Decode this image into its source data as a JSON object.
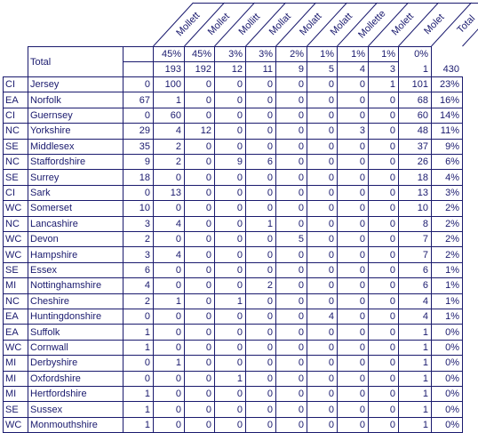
{
  "table": {
    "total_label": "Total",
    "columns": [
      "Mollett",
      "Mollet",
      "Mollitt",
      "Mollat",
      "Molatt",
      "Molatt",
      "Mollette",
      "Molett",
      "Molet",
      "Total"
    ],
    "header_pcts": [
      "45%",
      "45%",
      "3%",
      "3%",
      "2%",
      "1%",
      "1%",
      "1%",
      "0%"
    ],
    "header_counts": [
      "193",
      "192",
      "12",
      "11",
      "9",
      "5",
      "4",
      "3",
      "1",
      "430"
    ],
    "rows": [
      {
        "region": "CI",
        "county": "Jersey",
        "values": [
          "0",
          "100",
          "0",
          "0",
          "0",
          "0",
          "0",
          "0",
          "1",
          "101"
        ],
        "pct": "23%"
      },
      {
        "region": "EA",
        "county": "Norfolk",
        "values": [
          "67",
          "1",
          "0",
          "0",
          "0",
          "0",
          "0",
          "0",
          "0",
          "68"
        ],
        "pct": "16%"
      },
      {
        "region": "CI",
        "county": "Guernsey",
        "values": [
          "0",
          "60",
          "0",
          "0",
          "0",
          "0",
          "0",
          "0",
          "0",
          "60"
        ],
        "pct": "14%"
      },
      {
        "region": "NC",
        "county": "Yorkshire",
        "values": [
          "29",
          "4",
          "12",
          "0",
          "0",
          "0",
          "0",
          "3",
          "0",
          "48"
        ],
        "pct": "11%"
      },
      {
        "region": "SE",
        "county": "Middlesex",
        "values": [
          "35",
          "2",
          "0",
          "0",
          "0",
          "0",
          "0",
          "0",
          "0",
          "37"
        ],
        "pct": "9%"
      },
      {
        "region": "NC",
        "county": "Staffordshire",
        "values": [
          "9",
          "2",
          "0",
          "9",
          "6",
          "0",
          "0",
          "0",
          "0",
          "26"
        ],
        "pct": "6%"
      },
      {
        "region": "SE",
        "county": "Surrey",
        "values": [
          "18",
          "0",
          "0",
          "0",
          "0",
          "0",
          "0",
          "0",
          "0",
          "18"
        ],
        "pct": "4%"
      },
      {
        "region": "CI",
        "county": "Sark",
        "values": [
          "0",
          "13",
          "0",
          "0",
          "0",
          "0",
          "0",
          "0",
          "0",
          "13"
        ],
        "pct": "3%"
      },
      {
        "region": "WC",
        "county": "Somerset",
        "values": [
          "10",
          "0",
          "0",
          "0",
          "0",
          "0",
          "0",
          "0",
          "0",
          "10"
        ],
        "pct": "2%"
      },
      {
        "region": "NC",
        "county": "Lancashire",
        "values": [
          "3",
          "4",
          "0",
          "0",
          "1",
          "0",
          "0",
          "0",
          "0",
          "8"
        ],
        "pct": "2%"
      },
      {
        "region": "WC",
        "county": "Devon",
        "values": [
          "2",
          "0",
          "0",
          "0",
          "0",
          "5",
          "0",
          "0",
          "0",
          "7"
        ],
        "pct": "2%"
      },
      {
        "region": "WC",
        "county": "Hampshire",
        "values": [
          "3",
          "4",
          "0",
          "0",
          "0",
          "0",
          "0",
          "0",
          "0",
          "7"
        ],
        "pct": "2%"
      },
      {
        "region": "SE",
        "county": "Essex",
        "values": [
          "6",
          "0",
          "0",
          "0",
          "0",
          "0",
          "0",
          "0",
          "0",
          "6"
        ],
        "pct": "1%"
      },
      {
        "region": "MI",
        "county": "Nottinghamshire",
        "values": [
          "4",
          "0",
          "0",
          "0",
          "2",
          "0",
          "0",
          "0",
          "0",
          "6"
        ],
        "pct": "1%"
      },
      {
        "region": "NC",
        "county": "Cheshire",
        "values": [
          "2",
          "1",
          "0",
          "1",
          "0",
          "0",
          "0",
          "0",
          "0",
          "4"
        ],
        "pct": "1%"
      },
      {
        "region": "EA",
        "county": "Huntingdonshire",
        "values": [
          "0",
          "0",
          "0",
          "0",
          "0",
          "0",
          "4",
          "0",
          "0",
          "4"
        ],
        "pct": "1%"
      },
      {
        "region": "EA",
        "county": "Suffolk",
        "values": [
          "1",
          "0",
          "0",
          "0",
          "0",
          "0",
          "0",
          "0",
          "0",
          "1"
        ],
        "pct": "0%"
      },
      {
        "region": "WC",
        "county": "Cornwall",
        "values": [
          "1",
          "0",
          "0",
          "0",
          "0",
          "0",
          "0",
          "0",
          "0",
          "1"
        ],
        "pct": "0%"
      },
      {
        "region": "MI",
        "county": "Derbyshire",
        "values": [
          "0",
          "1",
          "0",
          "0",
          "0",
          "0",
          "0",
          "0",
          "0",
          "1"
        ],
        "pct": "0%"
      },
      {
        "region": "MI",
        "county": "Oxfordshire",
        "values": [
          "0",
          "0",
          "0",
          "1",
          "0",
          "0",
          "0",
          "0",
          "0",
          "1"
        ],
        "pct": "0%"
      },
      {
        "region": "MI",
        "county": "Hertfordshire",
        "values": [
          "1",
          "0",
          "0",
          "0",
          "0",
          "0",
          "0",
          "0",
          "0",
          "1"
        ],
        "pct": "0%"
      },
      {
        "region": "SE",
        "county": "Sussex",
        "values": [
          "1",
          "0",
          "0",
          "0",
          "0",
          "0",
          "0",
          "0",
          "0",
          "1"
        ],
        "pct": "0%"
      },
      {
        "region": "WC",
        "county": "Monmouthshire",
        "values": [
          "1",
          "0",
          "0",
          "0",
          "0",
          "0",
          "0",
          "0",
          "0",
          "1"
        ],
        "pct": "0%"
      }
    ]
  }
}
